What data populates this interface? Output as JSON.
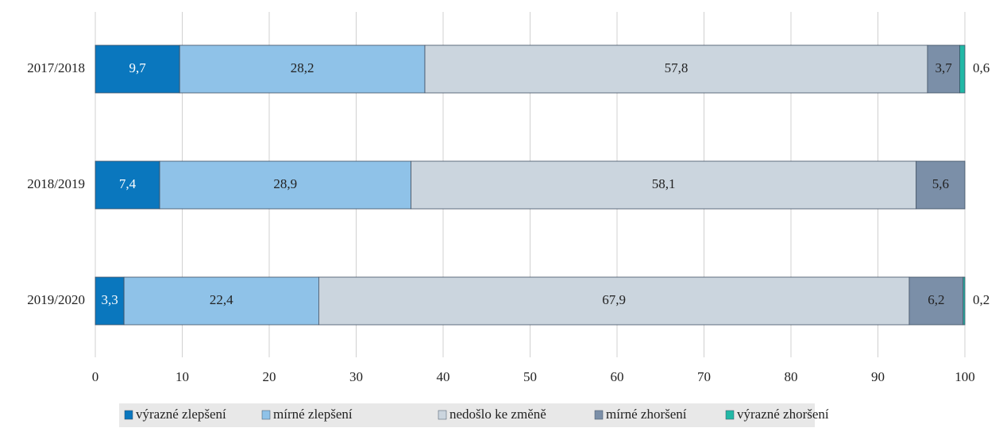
{
  "chart_data": {
    "type": "bar",
    "orientation": "horizontal",
    "stacked": true,
    "categories": [
      "2017/2018",
      "2018/2019",
      "2019/2020"
    ],
    "series": [
      {
        "name": "výrazné zlepšení",
        "color": "#0a77be",
        "label_color": "#ffffff",
        "values": [
          9.7,
          7.4,
          3.3
        ],
        "labels": [
          "9,7",
          "7,4",
          "3,3"
        ]
      },
      {
        "name": "mírné zlepšení",
        "color": "#8fc2e8",
        "label_color": "#222222",
        "values": [
          28.2,
          28.9,
          22.4
        ],
        "labels": [
          "28,2",
          "28,9",
          "22,4"
        ]
      },
      {
        "name": "nedošlo ke změně",
        "color": "#cbd5de",
        "label_color": "#222222",
        "values": [
          57.8,
          58.1,
          67.9
        ],
        "labels": [
          "57,8",
          "58,1",
          "67,9"
        ]
      },
      {
        "name": "mírné zhoršení",
        "color": "#7b8fa8",
        "label_color": "#222222",
        "values": [
          3.7,
          5.6,
          6.2
        ],
        "labels": [
          "3,7",
          "5,6",
          "6,2"
        ]
      },
      {
        "name": "výrazné zhoršení",
        "color": "#22b8a6",
        "label_color": "#222222",
        "values": [
          0.6,
          0,
          0.2
        ],
        "labels": [
          "0,6",
          "",
          "0,2"
        ]
      }
    ],
    "xlim": [
      0,
      100
    ],
    "xticks": [
      0,
      10,
      20,
      30,
      40,
      50,
      60,
      70,
      80,
      90,
      100
    ],
    "grid": "vertical",
    "legend_position": "bottom",
    "legend_background": "#e8e8e8"
  }
}
